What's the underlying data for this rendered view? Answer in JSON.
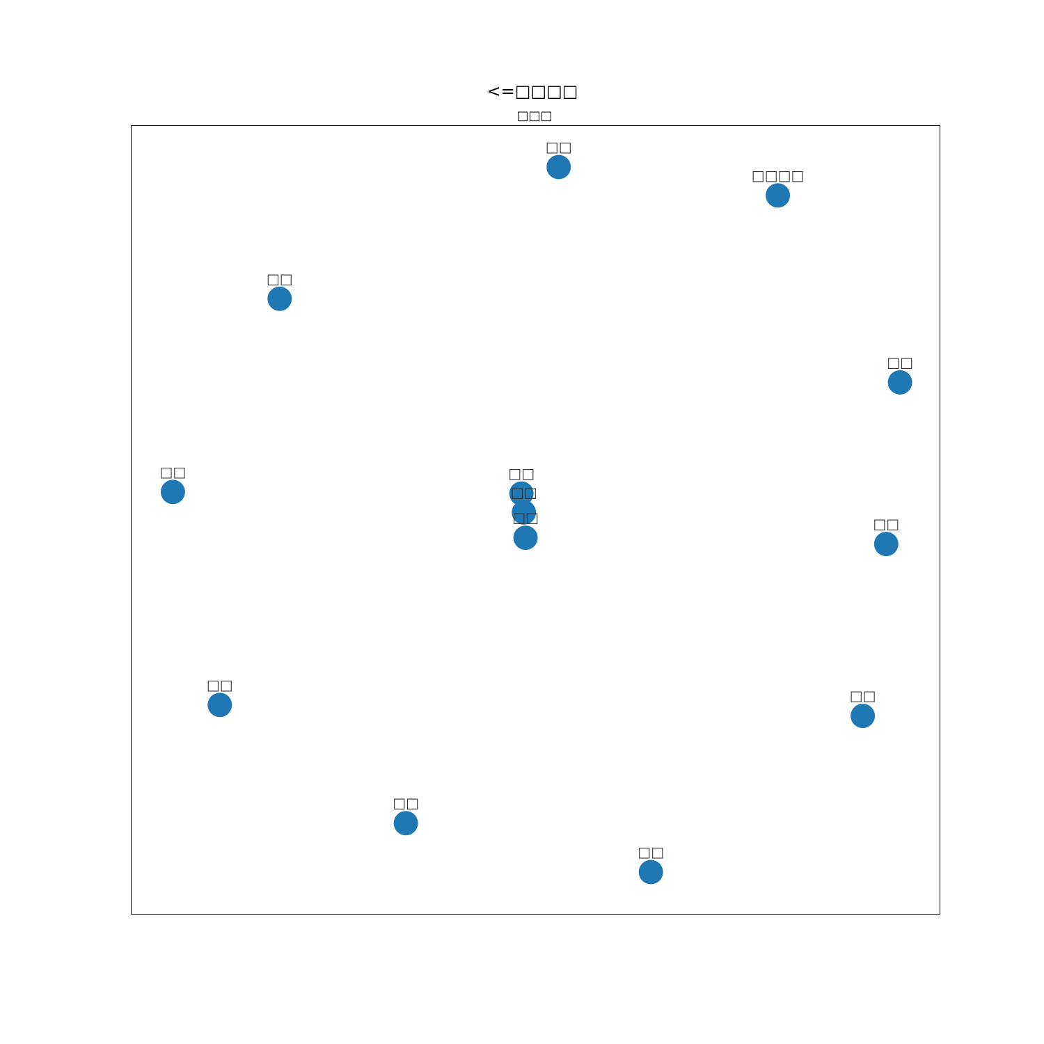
{
  "chart_data": {
    "type": "scatter",
    "title": "<=□□□□",
    "subtitle": "□□□",
    "grid": false,
    "xlim": [
      0,
      1
    ],
    "ylim": [
      0,
      1
    ],
    "marker_color": "#1f77b4",
    "points": [
      {
        "label": "□□",
        "x": 0.529,
        "y": 0.947
      },
      {
        "label": "□□□□",
        "x": 0.8,
        "y": 0.911
      },
      {
        "label": "□□",
        "x": 0.184,
        "y": 0.78
      },
      {
        "label": "□□",
        "x": 0.951,
        "y": 0.674
      },
      {
        "label": "□□",
        "x": 0.052,
        "y": 0.535
      },
      {
        "label": "□□",
        "x": 0.483,
        "y": 0.533
      },
      {
        "label": "□□",
        "x": 0.486,
        "y": 0.509
      },
      {
        "label": "□□",
        "x": 0.488,
        "y": 0.477
      },
      {
        "label": "□□",
        "x": 0.934,
        "y": 0.469
      },
      {
        "label": "□□",
        "x": 0.11,
        "y": 0.265
      },
      {
        "label": "□□",
        "x": 0.905,
        "y": 0.251
      },
      {
        "label": "□□",
        "x": 0.34,
        "y": 0.115
      },
      {
        "label": "□□",
        "x": 0.643,
        "y": 0.053
      }
    ]
  }
}
